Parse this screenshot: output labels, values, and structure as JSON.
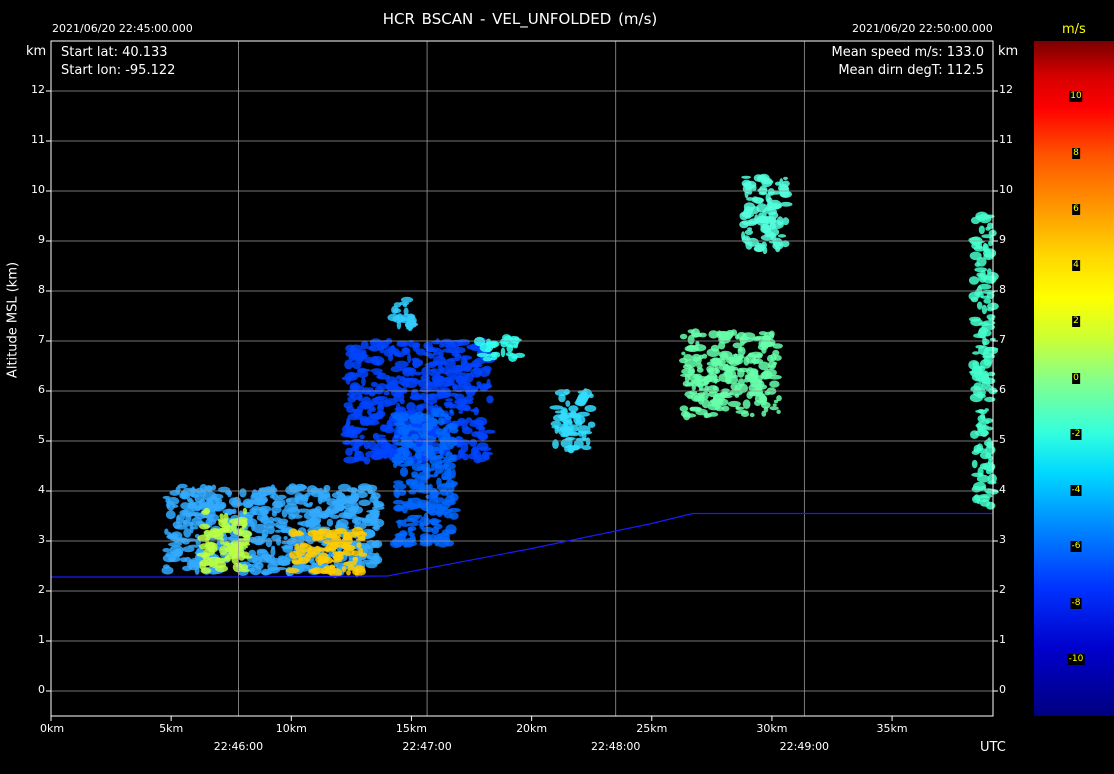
{
  "chart_data": {
    "type": "heatmap",
    "title": "HCR   BSCAN   -   VEL_UNFOLDED (m/s)",
    "start_time": "2021/06/20 22:45:00.000",
    "end_time": "2021/06/20 22:50:00.000",
    "info_left": [
      "Start lat: 40.133",
      "Start lon: -95.122"
    ],
    "info_right": [
      "Mean speed m/s: 133.0",
      "Mean dirn degT: 112.5"
    ],
    "y_unit": "km",
    "ylabel": "Altitude MSL (km)",
    "ylim": [
      -0.5,
      13
    ],
    "y_ticks": [
      "0",
      "1",
      "2",
      "3",
      "4",
      "5",
      "6",
      "7",
      "8",
      "9",
      "10",
      "11",
      "12"
    ],
    "x_unit_distance": "km",
    "xlim_km": [
      0,
      39.2
    ],
    "x_ticks_km": [
      {
        "v": 0,
        "label": "0km"
      },
      {
        "v": 5,
        "label": "5km"
      },
      {
        "v": 10,
        "label": "10km"
      },
      {
        "v": 15,
        "label": "15km"
      },
      {
        "v": 20,
        "label": "20km"
      },
      {
        "v": 25,
        "label": "25km"
      },
      {
        "v": 30,
        "label": "30km"
      },
      {
        "v": 35,
        "label": "35km"
      }
    ],
    "time_ticks": [
      {
        "km": 7.8,
        "label": "22:46:00"
      },
      {
        "km": 15.65,
        "label": "22:47:00"
      },
      {
        "km": 23.5,
        "label": "22:48:00"
      },
      {
        "km": 31.35,
        "label": "22:49:00"
      }
    ],
    "x_time_unit": "UTC",
    "grid": true,
    "aircraft_altitude_km": [
      [
        0,
        2.28
      ],
      [
        8,
        2.28
      ],
      [
        14,
        2.3
      ],
      [
        20,
        2.85
      ],
      [
        25,
        3.35
      ],
      [
        26.7,
        3.55
      ],
      [
        28,
        3.55
      ],
      [
        35,
        3.55
      ],
      [
        39.2,
        3.55
      ]
    ],
    "colorbar": {
      "unit": "m/s",
      "min": -12,
      "max": 12,
      "labels": [
        "10",
        "8",
        "6",
        "4",
        "2",
        "0",
        "-2",
        "-4",
        "-6",
        "-8",
        "-10"
      ],
      "colors": [
        "#7a0000",
        "#ff0000",
        "#ff9a00",
        "#ffff00",
        "#88ff88",
        "#00d8ff",
        "#0033ff",
        "#000080"
      ]
    },
    "echo_regions": [
      {
        "km": [
          4.8,
          13.7
        ],
        "alt": [
          2.35,
          4.1
        ],
        "color": "#33aaff"
      },
      {
        "km": [
          6.3,
          8.2
        ],
        "alt": [
          2.4,
          3.6
        ],
        "color": "#bbff44"
      },
      {
        "km": [
          10,
          13
        ],
        "alt": [
          2.35,
          3.2
        ],
        "color": "#ffcc00"
      },
      {
        "km": [
          12.3,
          18.3
        ],
        "alt": [
          4.6,
          7.0
        ],
        "color": "#0044ff"
      },
      {
        "km": [
          14.3,
          16.8
        ],
        "alt": [
          2.9,
          5.6
        ],
        "color": "#0066ff"
      },
      {
        "km": [
          14.2,
          15.1
        ],
        "alt": [
          7.2,
          7.85
        ],
        "color": "#33ccff"
      },
      {
        "km": [
          17.8,
          19.5
        ],
        "alt": [
          6.6,
          7.1
        ],
        "color": "#33ffee"
      },
      {
        "km": [
          20.9,
          22.5
        ],
        "alt": [
          4.8,
          6.0
        ],
        "color": "#33ddff"
      },
      {
        "km": [
          26.3,
          30.3
        ],
        "alt": [
          5.5,
          7.2
        ],
        "color": "#66ffaa"
      },
      {
        "km": [
          28.8,
          30.6
        ],
        "alt": [
          8.8,
          10.3
        ],
        "color": "#55ffdd"
      },
      {
        "km": [
          38.4,
          39.2
        ],
        "alt": [
          3.7,
          9.5
        ],
        "color": "#44ffcc"
      }
    ]
  }
}
